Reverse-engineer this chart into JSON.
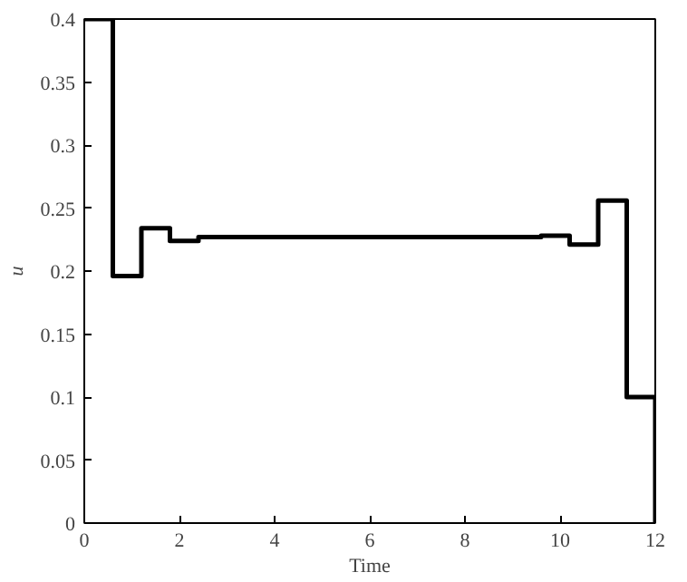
{
  "chart_data": {
    "type": "step",
    "xlabel": "Time",
    "ylabel": "u",
    "x": [
      0,
      0.6,
      1.2,
      1.8,
      2.4,
      9.6,
      10.2,
      10.8,
      11.4,
      12
    ],
    "series": [
      {
        "color": "#000000",
        "values": [
          0.4,
          0.196,
          0.234,
          0.224,
          0.227,
          0.228,
          0.221,
          0.256,
          0.1,
          0
        ]
      }
    ],
    "xlim": [
      0,
      12
    ],
    "ylim": [
      0,
      0.4
    ],
    "xticks": [
      0,
      2,
      4,
      6,
      8,
      10,
      12
    ],
    "yticks": [
      0,
      0.05,
      0.1,
      0.15,
      0.2,
      0.25,
      0.3,
      0.35,
      0.4
    ],
    "grid": false
  }
}
